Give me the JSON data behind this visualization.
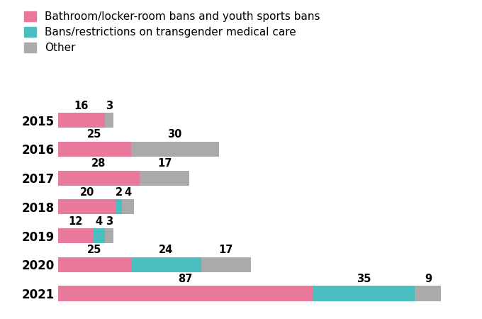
{
  "years": [
    "2015",
    "2016",
    "2017",
    "2018",
    "2019",
    "2020",
    "2021"
  ],
  "bathroom": [
    16,
    25,
    28,
    20,
    12,
    25,
    87
  ],
  "medical": [
    0,
    0,
    0,
    2,
    4,
    24,
    35
  ],
  "other": [
    3,
    30,
    17,
    4,
    3,
    17,
    9
  ],
  "colors": {
    "bathroom": "#E8799A",
    "medical": "#4BBFBF",
    "other": "#AAAAAA"
  },
  "legend_labels": [
    "Bathroom/locker-room bans and youth sports bans",
    "Bans/restrictions on transgender medical care",
    "Other"
  ],
  "background_color": "#FFFFFF",
  "label_fontsize": 10.5,
  "tick_fontsize": 12,
  "legend_fontsize": 11,
  "bar_height": 0.52,
  "xlim": 140
}
